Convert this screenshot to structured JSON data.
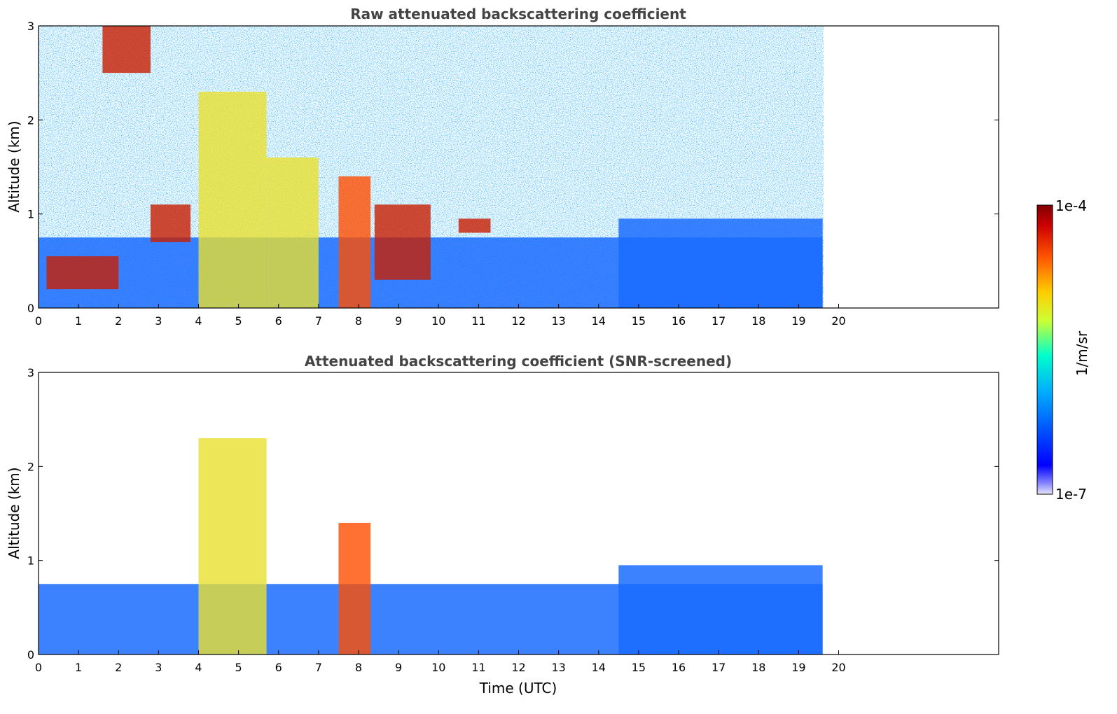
{
  "figure": {
    "xlabel": "Time (UTC)"
  },
  "chart_data": [
    {
      "type": "heatmap",
      "title": "Raw attenuated backscattering coefficient",
      "xlabel": "",
      "ylabel": "Altitude (km)",
      "xlim": [
        0,
        24
      ],
      "ylim": [
        0,
        3
      ],
      "xticks": [
        0,
        1,
        2,
        3,
        4,
        5,
        6,
        7,
        8,
        9,
        10,
        11,
        12,
        13,
        14,
        15,
        16,
        17,
        18,
        19,
        20
      ],
      "yticks": [
        0,
        1,
        2,
        3
      ],
      "data_extent_time": [
        0,
        19.6
      ],
      "layers": [
        {
          "name": "boundary layer aerosol",
          "t0": 0.0,
          "t1": 19.6,
          "base": 0.0,
          "top": 0.75,
          "level": "low"
        },
        {
          "name": "aerosol top",
          "t0": 14.5,
          "t1": 19.6,
          "base": 0.0,
          "top": 0.95,
          "level": "low"
        },
        {
          "name": "cloud",
          "t0": 0.2,
          "t1": 2.0,
          "base": 0.2,
          "top": 0.55,
          "level": "high"
        },
        {
          "name": "cloud",
          "t0": 2.8,
          "t1": 3.8,
          "base": 0.7,
          "top": 1.1,
          "level": "high"
        },
        {
          "name": "cloud",
          "t0": 4.0,
          "t1": 5.7,
          "base": 0.0,
          "top": 2.3,
          "level": "mid"
        },
        {
          "name": "cloud",
          "t0": 5.7,
          "t1": 7.0,
          "base": 0.0,
          "top": 1.6,
          "level": "mid"
        },
        {
          "name": "cloud",
          "t0": 7.5,
          "t1": 8.3,
          "base": 0.0,
          "top": 1.4,
          "level": "very-high"
        },
        {
          "name": "cloud",
          "t0": 8.4,
          "t1": 9.8,
          "base": 0.3,
          "top": 1.1,
          "level": "high"
        },
        {
          "name": "cloud",
          "t0": 10.5,
          "t1": 11.3,
          "base": 0.8,
          "top": 0.95,
          "level": "high"
        },
        {
          "name": "cirrus",
          "t0": 1.6,
          "t1": 2.8,
          "base": 2.5,
          "top": 3.0,
          "level": "high"
        }
      ]
    },
    {
      "type": "heatmap",
      "title": "Attenuated backscattering coefficient (SNR-screened)",
      "xlabel": "Time (UTC)",
      "ylabel": "Altitude (km)",
      "xlim": [
        0,
        24
      ],
      "ylim": [
        0,
        3
      ],
      "xticks": [
        0,
        1,
        2,
        3,
        4,
        5,
        6,
        7,
        8,
        9,
        10,
        11,
        12,
        13,
        14,
        15,
        16,
        17,
        18,
        19,
        20
      ],
      "yticks": [
        0,
        1,
        2,
        3
      ],
      "data_extent_time": [
        0,
        19.6
      ],
      "layers": [
        {
          "name": "boundary layer aerosol",
          "t0": 0.0,
          "t1": 19.6,
          "base": 0.0,
          "top": 0.75,
          "level": "low"
        },
        {
          "name": "aerosol top",
          "t0": 14.5,
          "t1": 19.6,
          "base": 0.0,
          "top": 0.95,
          "level": "low"
        },
        {
          "name": "cloud",
          "t0": 4.0,
          "t1": 5.7,
          "base": 0.0,
          "top": 2.3,
          "level": "mid"
        },
        {
          "name": "cloud",
          "t0": 7.5,
          "t1": 8.3,
          "base": 0.0,
          "top": 1.4,
          "level": "very-high"
        }
      ]
    }
  ],
  "colorbar": {
    "label": "1/m/sr",
    "max_label": "1e-4",
    "min_label": "1e-7",
    "min": 1e-07,
    "max": 0.0001,
    "scale": "log",
    "colormap": "jet",
    "colors": [
      "#e6e6fa",
      "#0000ff",
      "#00aaff",
      "#00ffcc",
      "#ccff33",
      "#ffcc00",
      "#ff5500",
      "#cc0000",
      "#800000"
    ]
  }
}
